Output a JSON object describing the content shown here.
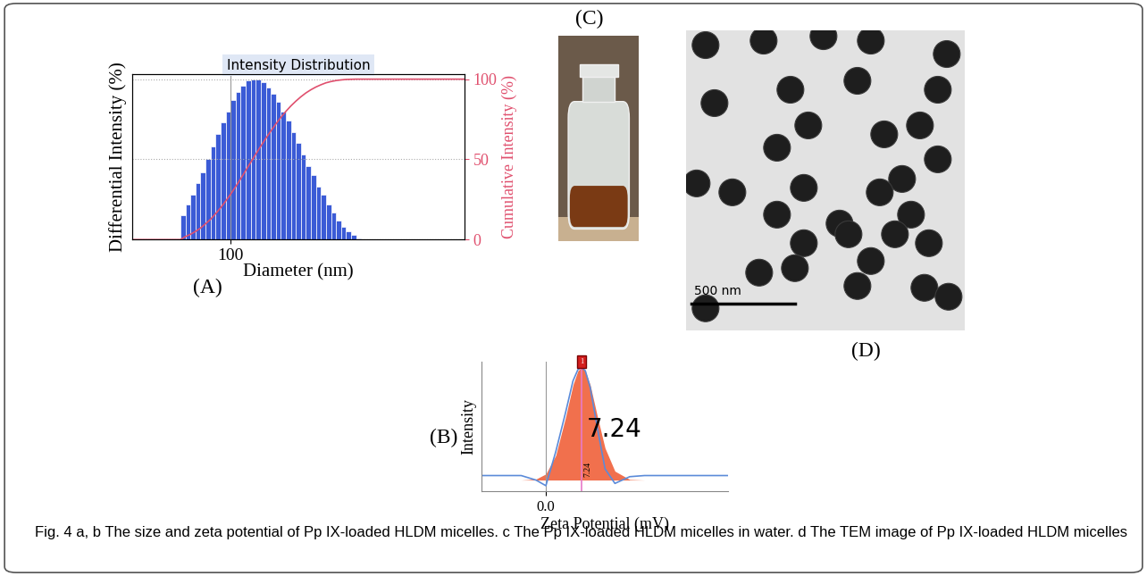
{
  "chart_data": [
    {
      "type": "histogram",
      "panel_label": "(A)",
      "title": "Intensity Distribution",
      "x_label": "Diameter (nm)",
      "y_label": "Differential Intensity (%)",
      "y2_label": "Cumulative Intensity (%)",
      "log": "x",
      "xlim": [
        33,
        1400
      ],
      "xticks": [
        100
      ],
      "ylim": [
        0,
        103
      ],
      "y2lim": [
        0,
        103
      ],
      "y2ticks": [
        0,
        50,
        100
      ],
      "grid": true,
      "color": "#3b5bd6",
      "bins": [
        57.0,
        60.3,
        63.9,
        67.5,
        71.5,
        75.6,
        80.1,
        84.7,
        89.6,
        94.8,
        100.4,
        106.2,
        112.4,
        118.9,
        125.8,
        133.2,
        140.9,
        149.1,
        157.8,
        167.0,
        176.7,
        187.0,
        197.9,
        209.4,
        221.5,
        234.4,
        248.1,
        262.5,
        277.8,
        293.9,
        311.0,
        329.1,
        348.3,
        368.5,
        389.9,
        412.6,
        436.7
      ],
      "values": [
        15,
        22,
        28,
        35,
        42,
        50,
        58,
        66,
        73,
        80,
        87,
        92,
        96,
        99,
        100,
        100,
        98,
        95,
        91,
        86,
        80,
        74,
        67,
        60,
        53,
        46,
        40,
        33,
        28,
        22,
        17,
        12,
        8,
        5,
        3,
        1
      ],
      "cumulative": {
        "axis": "y2",
        "color": "#e0506e",
        "x": [
          33,
          57.0,
          60.3,
          63.9,
          67.5,
          71.5,
          75.6,
          80.1,
          84.7,
          89.6,
          94.8,
          100.4,
          106.2,
          112.4,
          118.9,
          125.8,
          133.2,
          140.9,
          149.1,
          157.8,
          167.0,
          176.7,
          187.0,
          197.9,
          209.4,
          221.5,
          234.4,
          248.1,
          262.5,
          277.8,
          293.9,
          311.0,
          329.1,
          348.3,
          368.5,
          389.9,
          412.6,
          436.7,
          1400
        ],
        "values": [
          0,
          0,
          1.9,
          3.3,
          5.1,
          7.2,
          9.8,
          12.7,
          16.1,
          19.8,
          23.9,
          28.3,
          33.0,
          37.9,
          43.0,
          48.1,
          53.2,
          58.2,
          63.0,
          67.6,
          72.0,
          76.1,
          79.9,
          83.3,
          86.3,
          89.0,
          91.4,
          93.4,
          95.1,
          96.5,
          97.7,
          98.5,
          99.1,
          99.5,
          99.8,
          99.9,
          100,
          100,
          100
        ]
      }
    },
    {
      "type": "line",
      "panel_label": "(B)",
      "x_label": "Zeta Potential (mV)",
      "y_label": "Intensity",
      "xlim": [
        -13,
        37
      ],
      "xticks": [
        {
          "value": 0,
          "label": "0.0"
        }
      ],
      "ylim": [
        -10,
        105
      ],
      "tick_labels": "x",
      "grid": true,
      "x": [
        -13,
        -8,
        -5,
        -2,
        0,
        2,
        4,
        5.5,
        6.5,
        7.24,
        8,
        9,
        10.5,
        12,
        14,
        17,
        20,
        25,
        30,
        37
      ],
      "series": [
        {
          "type": "area",
          "color": "#f0603a",
          "values": [
            0,
            0,
            0,
            0.9,
            5.4,
            21.8,
            55.8,
            84.5,
            97,
            100,
            96.8,
            84.2,
            55.4,
            28.4,
            7.9,
            0.5,
            0,
            0,
            0,
            0
          ]
        },
        {
          "type": "line",
          "color": "#5b8bd9",
          "values": [
            4,
            4,
            4,
            0,
            -5,
            25,
            60,
            88,
            98,
            100,
            97,
            82,
            45,
            10,
            -3,
            3,
            4,
            4,
            4,
            4
          ]
        }
      ],
      "peak": {
        "value": 7.24,
        "label": "7.24",
        "marker_label": "1",
        "color": "#e87ac8"
      }
    }
  ],
  "photo": {
    "label": "(C)"
  },
  "tem": {
    "label": "(D)",
    "scale_bar": "500 nm"
  },
  "caption": "Fig. 4 a, b The size and zeta potential of Pp IX-loaded HLDM micelles. c The Pp IX-loaded HLDM micelles in water. d The TEM image of Pp IX-loaded HLDM micelles"
}
